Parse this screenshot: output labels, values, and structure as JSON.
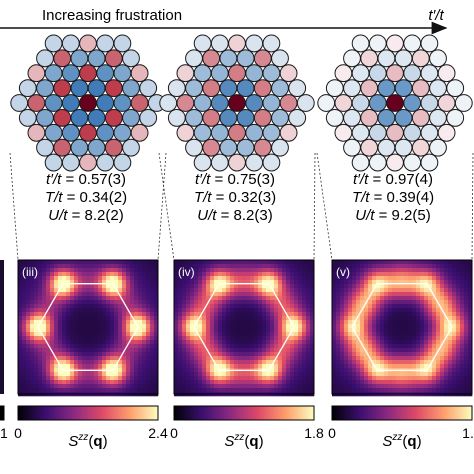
{
  "header": {
    "arrow_label": "Increasing frustration",
    "axis_symbol": "t′/t"
  },
  "colormap": [
    "#000004",
    "#3b0f70",
    "#8c2981",
    "#de4968",
    "#fe9f6d",
    "#fcfdbf"
  ],
  "panels": [
    {
      "label": "(iii)",
      "params": [
        {
          "sym": "t′/t",
          "val": " = 0.57(3)"
        },
        {
          "sym": "T/t",
          "val": " = 0.34(2)"
        },
        {
          "sym": "U/t",
          "val": " = 8.2(2)"
        }
      ],
      "colorbar": {
        "min": "0",
        "max": "2.4",
        "label_main": "S",
        "label_sup": "zz",
        "label_arg": "(q)"
      },
      "peak_strength": 1.0,
      "ring_strength": 0.35,
      "lattice_corr": [
        1.0,
        -0.9,
        0.75,
        -0.6,
        0.5,
        0.4
      ]
    },
    {
      "label": "(iv)",
      "params": [
        {
          "sym": "t′/t",
          "val": " = 0.75(3)"
        },
        {
          "sym": "T/t",
          "val": " = 0.32(3)"
        },
        {
          "sym": "U/t",
          "val": " = 8.2(3)"
        }
      ],
      "colorbar": {
        "min": "0",
        "max": "1.8",
        "label_main": "S",
        "label_sup": "zz",
        "label_arg": "(q)"
      },
      "peak_strength": 0.8,
      "ring_strength": 0.6,
      "lattice_corr": [
        1.0,
        -0.8,
        0.5,
        -0.45,
        0.3,
        0.25
      ]
    },
    {
      "label": "(v)",
      "params": [
        {
          "sym": "t′/t",
          "val": " = 0.97(4)"
        },
        {
          "sym": "T/t",
          "val": " = 0.39(4)"
        },
        {
          "sym": "U/t",
          "val": " = 9.2(5)"
        }
      ],
      "colorbar": {
        "min": "0",
        "max": "1.",
        "label_main": "S",
        "label_sup": "zz",
        "label_arg": "(q)"
      },
      "peak_strength": 0.55,
      "ring_strength": 0.9,
      "lattice_corr": [
        1.0,
        -0.7,
        0.25,
        -0.15,
        0.12,
        0.08
      ]
    }
  ],
  "left_edge": {
    "colorbar_max": "1"
  }
}
